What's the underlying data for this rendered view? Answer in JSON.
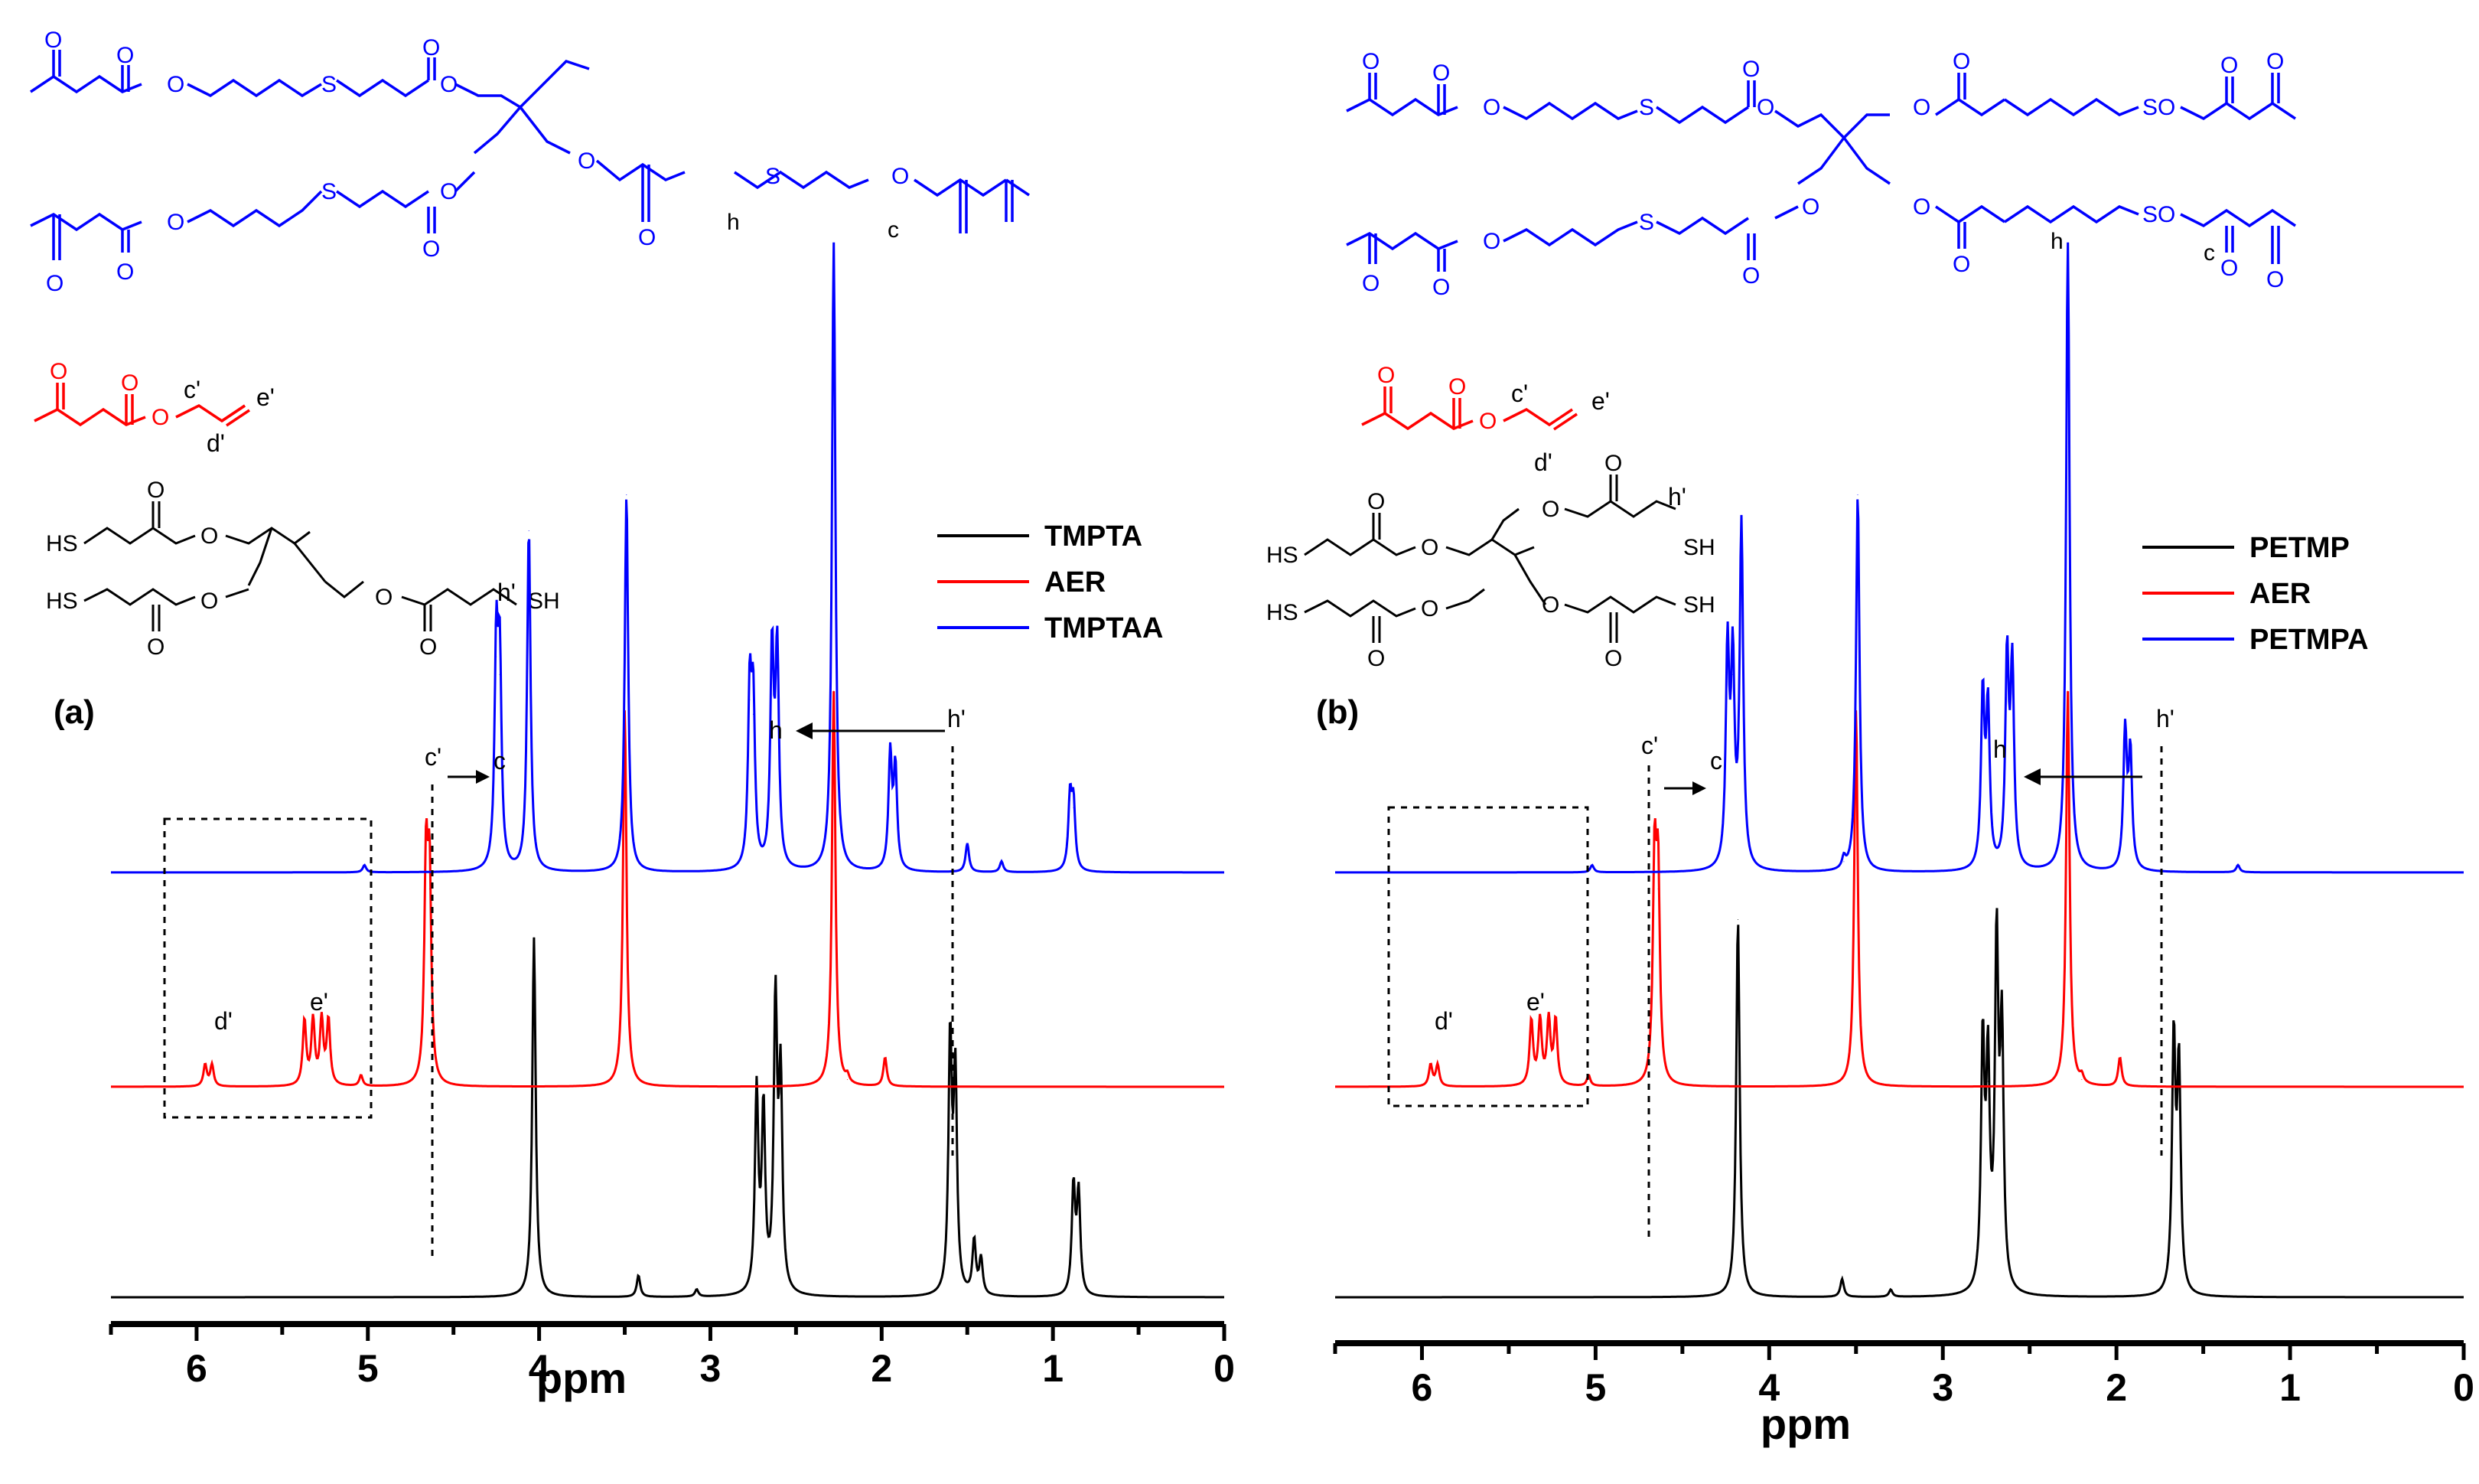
{
  "colors": {
    "black_series": "#000000",
    "red_series": "#ff0000",
    "blue_series": "#0000ff"
  },
  "chart_data": [
    {
      "type": "line",
      "panel_label": "(a)",
      "xlabel": "ppm",
      "xlim": [
        6.5,
        0
      ],
      "x_ticks": [
        "6",
        "5",
        "4",
        "3",
        "2",
        "1",
        "0"
      ],
      "series": [
        {
          "name": "TMPTA",
          "color": "black",
          "peaks": [
            {
              "ppm": 4.03,
              "height": 1.0
            },
            {
              "ppm": 3.42,
              "height": 0.06
            },
            {
              "ppm": 3.08,
              "height": 0.02
            },
            {
              "ppm": 2.73,
              "height": 0.56
            },
            {
              "ppm": 2.69,
              "height": 0.5
            },
            {
              "ppm": 2.62,
              "height": 0.8
            },
            {
              "ppm": 2.59,
              "height": 0.58
            },
            {
              "ppm": 1.6,
              "height": 0.7
            },
            {
              "ppm": 1.57,
              "height": 0.6
            },
            {
              "ppm": 1.46,
              "height": 0.15
            },
            {
              "ppm": 1.42,
              "height": 0.1
            },
            {
              "ppm": 0.88,
              "height": 0.3
            },
            {
              "ppm": 0.85,
              "height": 0.28
            }
          ]
        },
        {
          "name": "AER",
          "color": "red",
          "peaks": [
            {
              "ppm": 5.95,
              "height": 0.06
            },
            {
              "ppm": 5.91,
              "height": 0.06
            },
            {
              "ppm": 5.37,
              "height": 0.18
            },
            {
              "ppm": 5.32,
              "height": 0.18
            },
            {
              "ppm": 5.27,
              "height": 0.18
            },
            {
              "ppm": 5.23,
              "height": 0.18
            },
            {
              "ppm": 5.04,
              "height": 0.03
            },
            {
              "ppm": 4.66,
              "height": 0.6
            },
            {
              "ppm": 4.64,
              "height": 0.55
            },
            {
              "ppm": 3.5,
              "height": 1.05
            },
            {
              "ppm": 2.28,
              "height": 1.1
            },
            {
              "ppm": 2.2,
              "height": 0.02
            },
            {
              "ppm": 1.98,
              "height": 0.08
            }
          ]
        },
        {
          "name": "TMPTAA",
          "color": "blue",
          "peaks": [
            {
              "ppm": 5.02,
              "height": 0.02
            },
            {
              "ppm": 4.25,
              "height": 0.6
            },
            {
              "ppm": 4.23,
              "height": 0.55
            },
            {
              "ppm": 4.06,
              "height": 0.95
            },
            {
              "ppm": 3.49,
              "height": 1.05
            },
            {
              "ppm": 2.77,
              "height": 0.48
            },
            {
              "ppm": 2.75,
              "height": 0.44
            },
            {
              "ppm": 2.64,
              "height": 0.6
            },
            {
              "ppm": 2.61,
              "height": 0.6
            },
            {
              "ppm": 2.28,
              "height": 1.75
            },
            {
              "ppm": 1.95,
              "height": 0.32
            },
            {
              "ppm": 1.92,
              "height": 0.28
            },
            {
              "ppm": 1.5,
              "height": 0.08
            },
            {
              "ppm": 1.3,
              "height": 0.03
            },
            {
              "ppm": 0.9,
              "height": 0.2
            },
            {
              "ppm": 0.88,
              "height": 0.18
            }
          ]
        }
      ],
      "legend": [
        "TMPTA",
        "AER",
        "TMPTAA"
      ],
      "annotations": {
        "c_prime": "c'",
        "c": "c",
        "h": "h",
        "h_prime": "h'",
        "d_prime": "d'",
        "e_prime": "e'"
      }
    },
    {
      "type": "line",
      "panel_label": "(b)",
      "xlabel": "ppm",
      "xlim": [
        6.5,
        0
      ],
      "x_ticks": [
        "6",
        "5",
        "4",
        "3",
        "2",
        "1",
        "0"
      ],
      "series": [
        {
          "name": "PETMP",
          "color": "black",
          "peaks": [
            {
              "ppm": 4.18,
              "height": 1.05
            },
            {
              "ppm": 3.58,
              "height": 0.05
            },
            {
              "ppm": 3.3,
              "height": 0.02
            },
            {
              "ppm": 2.77,
              "height": 0.68
            },
            {
              "ppm": 2.74,
              "height": 0.6
            },
            {
              "ppm": 2.69,
              "height": 0.95
            },
            {
              "ppm": 2.66,
              "height": 0.7
            },
            {
              "ppm": 1.67,
              "height": 0.7
            },
            {
              "ppm": 1.64,
              "height": 0.62
            }
          ]
        },
        {
          "name": "AER",
          "color": "red",
          "peaks": [
            {
              "ppm": 5.95,
              "height": 0.06
            },
            {
              "ppm": 5.91,
              "height": 0.06
            },
            {
              "ppm": 5.37,
              "height": 0.18
            },
            {
              "ppm": 5.32,
              "height": 0.18
            },
            {
              "ppm": 5.27,
              "height": 0.18
            },
            {
              "ppm": 5.23,
              "height": 0.18
            },
            {
              "ppm": 5.04,
              "height": 0.03
            },
            {
              "ppm": 4.66,
              "height": 0.6
            },
            {
              "ppm": 4.64,
              "height": 0.55
            },
            {
              "ppm": 3.5,
              "height": 1.05
            },
            {
              "ppm": 2.28,
              "height": 1.1
            },
            {
              "ppm": 2.2,
              "height": 0.02
            },
            {
              "ppm": 1.98,
              "height": 0.08
            }
          ]
        },
        {
          "name": "PETMPA",
          "color": "blue",
          "peaks": [
            {
              "ppm": 5.02,
              "height": 0.02
            },
            {
              "ppm": 4.24,
              "height": 0.6
            },
            {
              "ppm": 4.21,
              "height": 0.55
            },
            {
              "ppm": 4.16,
              "height": 0.95
            },
            {
              "ppm": 3.57,
              "height": 0.03
            },
            {
              "ppm": 3.49,
              "height": 1.05
            },
            {
              "ppm": 2.77,
              "height": 0.48
            },
            {
              "ppm": 2.74,
              "height": 0.44
            },
            {
              "ppm": 2.63,
              "height": 0.58
            },
            {
              "ppm": 2.6,
              "height": 0.55
            },
            {
              "ppm": 2.28,
              "height": 1.75
            },
            {
              "ppm": 1.95,
              "height": 0.38
            },
            {
              "ppm": 1.92,
              "height": 0.32
            },
            {
              "ppm": 1.3,
              "height": 0.02
            }
          ]
        }
      ],
      "legend": [
        "PETMP",
        "AER",
        "PETMPA"
      ],
      "annotations": {
        "c_prime": "c'",
        "c": "c",
        "h": "h",
        "h_prime": "h'",
        "d_prime": "d'",
        "e_prime": "e'"
      }
    }
  ],
  "structures": {
    "panel_a": {
      "blue_atoms": [
        "O",
        "O",
        "O",
        "S",
        "O",
        "O",
        "O",
        "O",
        "O",
        "O",
        "S",
        "O",
        "O",
        "O",
        "S",
        "O",
        "O"
      ],
      "blue_labels": {
        "h": "h",
        "c": "c"
      },
      "red_atoms": [
        "O",
        "O",
        "O"
      ],
      "red_labels": {
        "c_prime": "c'",
        "d_prime": "d'",
        "e_prime": "e'"
      },
      "black_atoms": [
        "HS",
        "HS",
        "SH",
        "O",
        "O",
        "O",
        "O",
        "O",
        "O"
      ],
      "black_labels": {
        "h_prime": "h'"
      }
    },
    "panel_b": {
      "blue_atoms": [
        "O",
        "O",
        "O",
        "S",
        "O",
        "O",
        "O",
        "S",
        "O",
        "O",
        "O",
        "O",
        "O",
        "O",
        "S",
        "O",
        "O",
        "O",
        "S",
        "O",
        "O",
        "O",
        "O",
        "O"
      ],
      "blue_labels": {
        "h": "h",
        "c": "c"
      },
      "red_atoms": [
        "O",
        "O",
        "O"
      ],
      "red_labels": {
        "c_prime": "c'",
        "d_prime": "d'",
        "e_prime": "e'"
      },
      "black_atoms": [
        "HS",
        "SH",
        "HS",
        "SH",
        "O",
        "O",
        "O",
        "O",
        "O",
        "O",
        "O",
        "O"
      ],
      "black_labels": {
        "h_prime": "h'"
      }
    }
  }
}
